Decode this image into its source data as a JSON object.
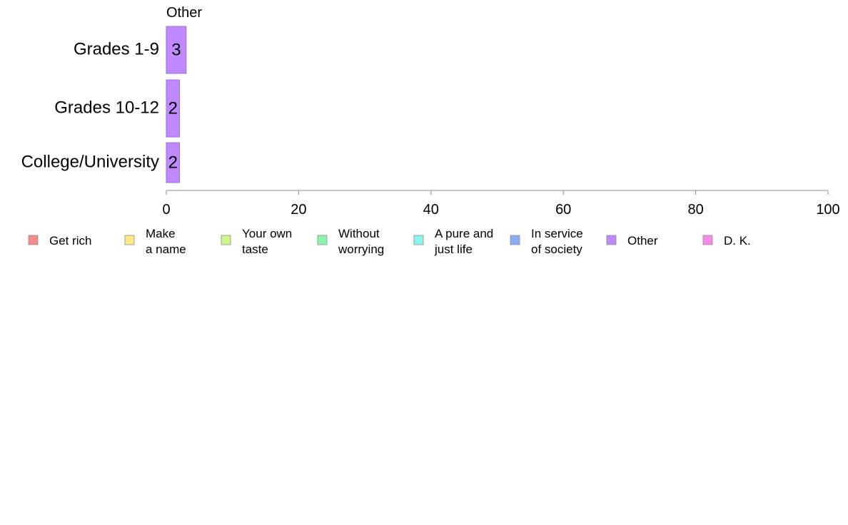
{
  "chart_data": {
    "type": "bar",
    "orientation": "horizontal",
    "title": "Other",
    "categories": [
      "Grades 1-9",
      "Grades 10-12",
      "College/University"
    ],
    "series": [
      {
        "name": "Other",
        "values": [
          3,
          2,
          2
        ],
        "color": "#bf8aff"
      }
    ],
    "data_labels": [
      "3",
      "2",
      "2"
    ],
    "xlim": [
      0,
      100
    ],
    "x_ticks": [
      0,
      20,
      40,
      60,
      80,
      100
    ],
    "grid": false,
    "legend_position": "bottom",
    "legend": [
      {
        "lines": [
          "Get rich"
        ],
        "color": "#f78b8b"
      },
      {
        "lines": [
          "Make",
          "a name"
        ],
        "color": "#fde88a"
      },
      {
        "lines": [
          "Your own",
          "taste"
        ],
        "color": "#cdf58a"
      },
      {
        "lines": [
          "Without",
          "worrying"
        ],
        "color": "#8bf5b0"
      },
      {
        "lines": [
          "A pure and",
          "just life"
        ],
        "color": "#8bf5f0"
      },
      {
        "lines": [
          "In service",
          "of society"
        ],
        "color": "#8aacf2"
      },
      {
        "lines": [
          "Other"
        ],
        "color": "#bf8aff"
      },
      {
        "lines": [
          "D. K."
        ],
        "color": "#f78bea"
      }
    ]
  }
}
